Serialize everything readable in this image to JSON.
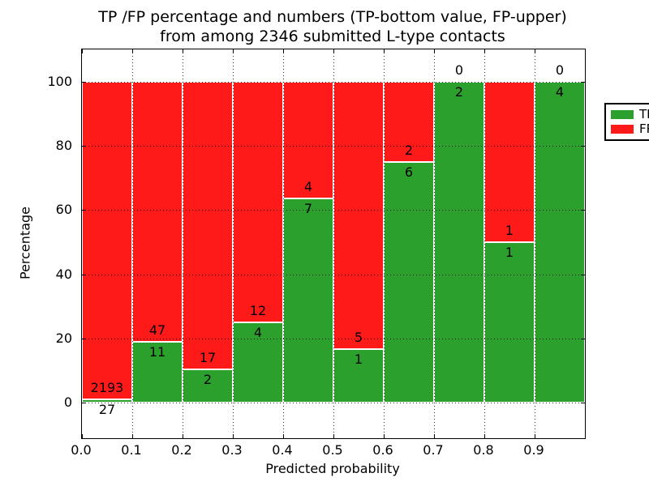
{
  "title": {
    "line1": "TP /FP percentage and numbers (TP-bottom value, FP-upper)",
    "line2": "from among 2346 submitted L-type contacts"
  },
  "chart_data": {
    "type": "bar",
    "subtype": "stacked-percentage-histogram",
    "title": "TP /FP percentage and numbers (TP-bottom value, FP-upper) from among 2346 submitted L-type contacts",
    "xlabel": "Predicted probability",
    "ylabel": "Percentage",
    "total_contacts": 2346,
    "xlim": [
      0,
      1
    ],
    "ylim": [
      -11,
      110
    ],
    "grid": true,
    "x_tick_labels": [
      "0.0",
      "0.1",
      "0.2",
      "0.3",
      "0.4",
      "0.5",
      "0.6",
      "0.7",
      "0.8",
      "0.9"
    ],
    "y_tick_values": [
      0,
      20,
      40,
      60,
      80,
      100
    ],
    "colors": {
      "tp": "#2ca02c",
      "fp": "#ff1a1a",
      "grid": "#000000",
      "bar_edge": "#ffffff"
    },
    "legend": {
      "position": "upper right",
      "entries": [
        {
          "label": "TP",
          "color": "#2ca02c"
        },
        {
          "label": "FP",
          "color": "#ff1a1a"
        }
      ]
    },
    "bins": [
      {
        "x0": 0.0,
        "x1": 0.1,
        "tp": 27,
        "fp": 2193,
        "tp_pct": 1.22
      },
      {
        "x0": 0.1,
        "x1": 0.2,
        "tp": 11,
        "fp": 47,
        "tp_pct": 18.97
      },
      {
        "x0": 0.2,
        "x1": 0.3,
        "tp": 2,
        "fp": 17,
        "tp_pct": 10.53
      },
      {
        "x0": 0.3,
        "x1": 0.4,
        "tp": 4,
        "fp": 12,
        "tp_pct": 25.0
      },
      {
        "x0": 0.4,
        "x1": 0.5,
        "tp": 7,
        "fp": 4,
        "tp_pct": 63.64
      },
      {
        "x0": 0.5,
        "x1": 0.6,
        "tp": 1,
        "fp": 5,
        "tp_pct": 16.67
      },
      {
        "x0": 0.6,
        "x1": 0.7,
        "tp": 6,
        "fp": 2,
        "tp_pct": 75.0
      },
      {
        "x0": 0.7,
        "x1": 0.8,
        "tp": 2,
        "fp": 0,
        "tp_pct": 100.0
      },
      {
        "x0": 0.8,
        "x1": 0.9,
        "tp": 1,
        "fp": 1,
        "tp_pct": 50.0
      },
      {
        "x0": 0.9,
        "x1": 1.0,
        "tp": 4,
        "fp": 0,
        "tp_pct": 100.0
      }
    ]
  }
}
